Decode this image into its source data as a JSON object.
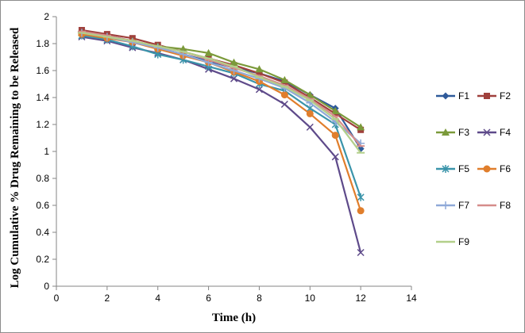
{
  "chart_data": {
    "type": "line",
    "title": "",
    "xlabel": "Time (h)",
    "ylabel": "Log Cumulative % Drug Remaining to be Released",
    "xlim": [
      0,
      14
    ],
    "ylim": [
      0,
      2
    ],
    "xticks": [
      0,
      2,
      4,
      6,
      8,
      10,
      12,
      14
    ],
    "yticks": [
      0,
      0.2,
      0.4,
      0.6,
      0.8,
      1,
      1.2,
      1.4,
      1.6,
      1.8,
      2
    ],
    "grid": false,
    "legend_position": "right",
    "x": [
      1,
      2,
      3,
      4,
      5,
      6,
      7,
      8,
      9,
      10,
      11,
      12
    ],
    "series": [
      {
        "name": "F1",
        "color": "#2e5a9a",
        "marker": "diamond",
        "values": [
          1.89,
          1.86,
          1.82,
          1.77,
          1.72,
          1.67,
          1.62,
          1.58,
          1.52,
          1.42,
          1.32,
          1.02
        ]
      },
      {
        "name": "F2",
        "color": "#a0403c",
        "marker": "square",
        "values": [
          1.9,
          1.87,
          1.84,
          1.79,
          1.74,
          1.69,
          1.64,
          1.58,
          1.51,
          1.4,
          1.28,
          1.16
        ]
      },
      {
        "name": "F3",
        "color": "#7b9a3a",
        "marker": "triangle",
        "values": [
          1.88,
          1.85,
          1.82,
          1.78,
          1.76,
          1.73,
          1.66,
          1.61,
          1.53,
          1.42,
          1.3,
          1.18
        ]
      },
      {
        "name": "F4",
        "color": "#5e4a8a",
        "marker": "x",
        "values": [
          1.85,
          1.82,
          1.77,
          1.73,
          1.68,
          1.61,
          1.54,
          1.46,
          1.35,
          1.18,
          0.96,
          0.25
        ]
      },
      {
        "name": "F5",
        "color": "#3a94aa",
        "marker": "star",
        "values": [
          1.86,
          1.83,
          1.78,
          1.72,
          1.68,
          1.63,
          1.58,
          1.5,
          1.45,
          1.32,
          1.2,
          0.66
        ]
      },
      {
        "name": "F6",
        "color": "#e07e2c",
        "marker": "circle",
        "values": [
          1.87,
          1.84,
          1.81,
          1.76,
          1.71,
          1.66,
          1.59,
          1.52,
          1.42,
          1.28,
          1.12,
          0.56
        ]
      },
      {
        "name": "F7",
        "color": "#8fa9d8",
        "marker": "plus",
        "values": [
          1.88,
          1.85,
          1.81,
          1.77,
          1.72,
          1.66,
          1.6,
          1.54,
          1.47,
          1.36,
          1.22,
          1.06
        ]
      },
      {
        "name": "F8",
        "color": "#d68c8a",
        "marker": "dash",
        "values": [
          1.89,
          1.86,
          1.82,
          1.78,
          1.74,
          1.68,
          1.62,
          1.56,
          1.49,
          1.39,
          1.26,
          1.04
        ]
      },
      {
        "name": "F9",
        "color": "#b3cf8a",
        "marker": "dash",
        "values": [
          1.88,
          1.85,
          1.82,
          1.78,
          1.74,
          1.69,
          1.63,
          1.55,
          1.48,
          1.38,
          1.24,
          0.99
        ]
      }
    ]
  }
}
